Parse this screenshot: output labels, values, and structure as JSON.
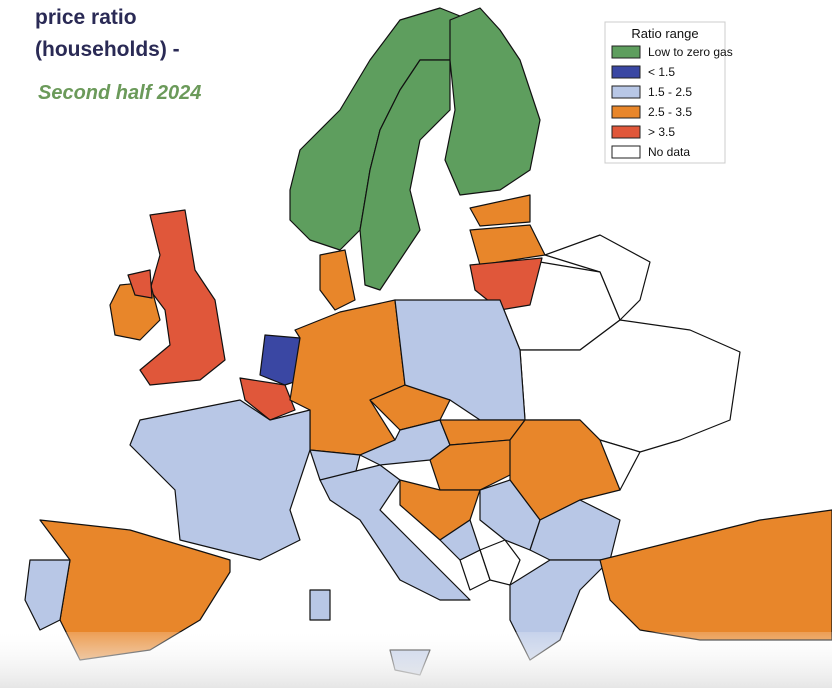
{
  "header": {
    "title_lines": [
      "price ratio",
      "(households) -"
    ],
    "subtitle": "Second half 2024"
  },
  "legend": {
    "title": "Ratio range",
    "items": [
      {
        "label": "Low to zero gas",
        "color": "#5e9e5e"
      },
      {
        "label": "< 1.5",
        "color": "#3a47a3"
      },
      {
        "label": "1.5 - 2.5",
        "color": "#b8c7e6"
      },
      {
        "label": "2.5 - 3.5",
        "color": "#e8862a"
      },
      {
        "label": "> 3.5",
        "color": "#e0573a"
      },
      {
        "label": "No data",
        "color": "#ffffff"
      }
    ]
  }
}
